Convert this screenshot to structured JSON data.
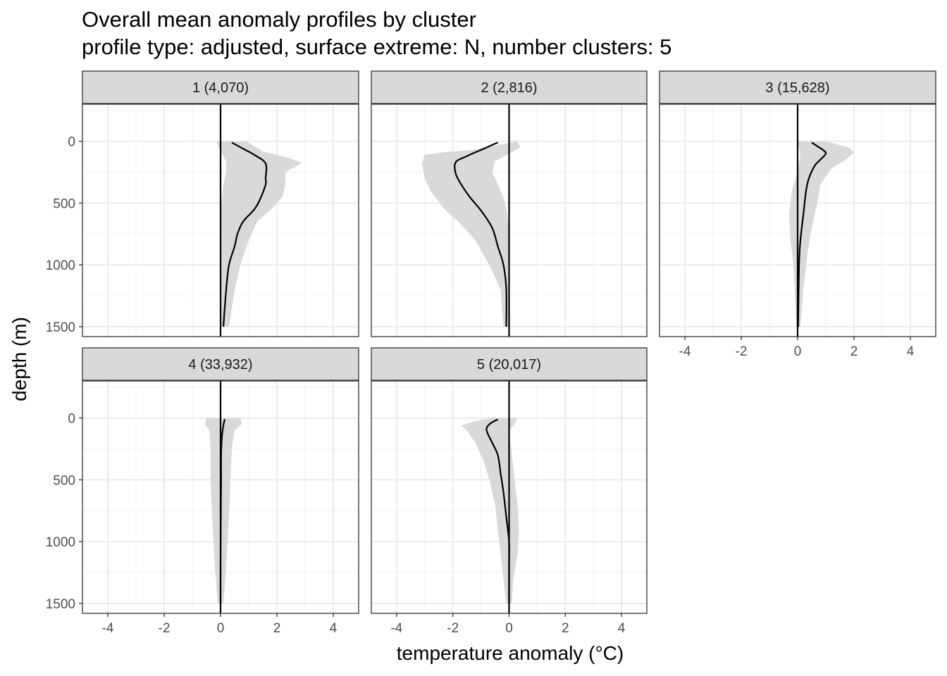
{
  "title_line1": "Overall mean anomaly profiles by cluster",
  "title_line2": "profile type: adjusted, surface extreme: N, number clusters: 5",
  "colors": {
    "ribbon": "#d9d9d9",
    "line": "#000000",
    "strip": "#d9d9d9",
    "grid_major": "#ebebeb",
    "grid_minor": "#f3f3f3",
    "border": "#333333",
    "tick_text": "#4d4d4d"
  },
  "chart_data": {
    "type": "line",
    "facet_layout": "3 columns x 2 rows",
    "xlabel": "temperature anomaly (°C)",
    "ylabel": "depth (m)",
    "xlim": [
      -4.9,
      4.9
    ],
    "ylim": [
      1580,
      -300
    ],
    "y_reversed": true,
    "xticks": [
      -4,
      -2,
      0,
      2,
      4
    ],
    "yticks": [
      0,
      500,
      1000,
      1500
    ],
    "reference_line_x": 0,
    "panels": [
      {
        "label": "1 (4,070)",
        "mean": [
          [
            0.4,
            10
          ],
          [
            0.8,
            60
          ],
          [
            1.2,
            110
          ],
          [
            1.6,
            180
          ],
          [
            1.6,
            300
          ],
          [
            1.6,
            350
          ],
          [
            1.4,
            470
          ],
          [
            1.2,
            550
          ],
          [
            0.8,
            650
          ],
          [
            0.6,
            750
          ],
          [
            0.5,
            850
          ],
          [
            0.3,
            1000
          ],
          [
            0.2,
            1200
          ],
          [
            0.1,
            1500
          ]
        ],
        "upper": [
          [
            0.9,
            0
          ],
          [
            1.5,
            80
          ],
          [
            2.5,
            140
          ],
          [
            2.9,
            175
          ],
          [
            2.3,
            250
          ],
          [
            2.3,
            350
          ],
          [
            2.2,
            450
          ],
          [
            1.8,
            550
          ],
          [
            1.3,
            650
          ],
          [
            1.0,
            800
          ],
          [
            0.7,
            1000
          ],
          [
            0.5,
            1200
          ],
          [
            0.3,
            1500
          ]
        ],
        "lower": [
          [
            -0.15,
            0
          ],
          [
            0,
            80
          ],
          [
            0.2,
            160
          ],
          [
            0.2,
            250
          ],
          [
            0.1,
            350
          ],
          [
            0.0,
            550
          ],
          [
            0.0,
            700
          ],
          [
            0.0,
            900
          ],
          [
            0.0,
            1200
          ],
          [
            0.0,
            1500
          ]
        ]
      },
      {
        "label": "2 (2,816)",
        "mean": [
          [
            -0.4,
            10
          ],
          [
            -0.9,
            60
          ],
          [
            -1.5,
            120
          ],
          [
            -1.9,
            170
          ],
          [
            -1.9,
            260
          ],
          [
            -1.7,
            350
          ],
          [
            -1.4,
            450
          ],
          [
            -1.0,
            560
          ],
          [
            -0.6,
            700
          ],
          [
            -0.4,
            850
          ],
          [
            -0.2,
            1000
          ],
          [
            -0.1,
            1200
          ],
          [
            -0.1,
            1500
          ]
        ],
        "upper": [
          [
            0.3,
            0
          ],
          [
            0.4,
            50
          ],
          [
            0.0,
            100
          ],
          [
            -0.5,
            160
          ],
          [
            -0.6,
            250
          ],
          [
            -0.4,
            350
          ],
          [
            -0.2,
            450
          ],
          [
            -0.1,
            550
          ],
          [
            0.0,
            700
          ],
          [
            0.0,
            1000
          ],
          [
            0.0,
            1500
          ]
        ],
        "lower": [
          [
            -1.3,
            70
          ],
          [
            -2.4,
            90
          ],
          [
            -3.0,
            110
          ],
          [
            -3.1,
            180
          ],
          [
            -3.0,
            300
          ],
          [
            -2.8,
            400
          ],
          [
            -2.3,
            550
          ],
          [
            -1.8,
            650
          ],
          [
            -1.2,
            800
          ],
          [
            -0.7,
            1000
          ],
          [
            -0.3,
            1200
          ],
          [
            -0.2,
            1500
          ]
        ]
      },
      {
        "label": "3 (15,628)",
        "mean": [
          [
            0.5,
            10
          ],
          [
            0.7,
            40
          ],
          [
            0.9,
            70
          ],
          [
            1.0,
            100
          ],
          [
            0.8,
            150
          ],
          [
            0.6,
            200
          ],
          [
            0.4,
            300
          ],
          [
            0.3,
            400
          ],
          [
            0.2,
            600
          ],
          [
            0.1,
            800
          ],
          [
            0.05,
            1000
          ],
          [
            0.02,
            1500
          ]
        ],
        "upper": [
          [
            1.0,
            0
          ],
          [
            1.8,
            50
          ],
          [
            2.0,
            90
          ],
          [
            1.7,
            150
          ],
          [
            1.2,
            220
          ],
          [
            0.8,
            350
          ],
          [
            0.7,
            500
          ],
          [
            0.5,
            700
          ],
          [
            0.35,
            900
          ],
          [
            0.2,
            1200
          ],
          [
            0.1,
            1500
          ]
        ],
        "lower": [
          [
            0.0,
            0
          ],
          [
            0.1,
            100
          ],
          [
            0.0,
            250
          ],
          [
            -0.2,
            400
          ],
          [
            -0.3,
            600
          ],
          [
            -0.25,
            800
          ],
          [
            -0.15,
            1000
          ],
          [
            -0.1,
            1200
          ],
          [
            -0.05,
            1500
          ]
        ]
      },
      {
        "label": "4 (33,932)",
        "mean": [
          [
            0.15,
            10
          ],
          [
            0.1,
            60
          ],
          [
            0.05,
            150
          ],
          [
            0.02,
            300
          ],
          [
            0.02,
            500
          ],
          [
            0.01,
            800
          ],
          [
            0.0,
            1200
          ],
          [
            0.0,
            1500
          ]
        ],
        "upper": [
          [
            0.7,
            0
          ],
          [
            0.75,
            50
          ],
          [
            0.5,
            100
          ],
          [
            0.4,
            250
          ],
          [
            0.35,
            500
          ],
          [
            0.3,
            800
          ],
          [
            0.2,
            1200
          ],
          [
            0.1,
            1500
          ]
        ],
        "lower": [
          [
            -0.5,
            0
          ],
          [
            -0.55,
            50
          ],
          [
            -0.4,
            100
          ],
          [
            -0.35,
            250
          ],
          [
            -0.35,
            500
          ],
          [
            -0.3,
            800
          ],
          [
            -0.2,
            1200
          ],
          [
            -0.1,
            1500
          ]
        ]
      },
      {
        "label": "5 (20,017)",
        "mean": [
          [
            -0.4,
            10
          ],
          [
            -0.7,
            50
          ],
          [
            -0.8,
            100
          ],
          [
            -0.6,
            200
          ],
          [
            -0.4,
            300
          ],
          [
            -0.3,
            450
          ],
          [
            -0.2,
            600
          ],
          [
            -0.1,
            800
          ],
          [
            0.0,
            1000
          ],
          [
            0.0,
            1200
          ],
          [
            0.0,
            1500
          ]
        ],
        "upper": [
          [
            0.3,
            0
          ],
          [
            0.2,
            50
          ],
          [
            0.0,
            100
          ],
          [
            0.05,
            200
          ],
          [
            0.1,
            300
          ],
          [
            0.2,
            500
          ],
          [
            0.3,
            700
          ],
          [
            0.35,
            900
          ],
          [
            0.3,
            1100
          ],
          [
            0.15,
            1300
          ],
          [
            0.1,
            1500
          ]
        ],
        "lower": [
          [
            -0.6,
            0
          ],
          [
            -1.3,
            30
          ],
          [
            -1.7,
            60
          ],
          [
            -1.5,
            100
          ],
          [
            -1.2,
            200
          ],
          [
            -0.9,
            350
          ],
          [
            -0.7,
            500
          ],
          [
            -0.5,
            700
          ],
          [
            -0.4,
            900
          ],
          [
            -0.3,
            1100
          ],
          [
            -0.2,
            1300
          ],
          [
            -0.1,
            1500
          ]
        ]
      }
    ]
  }
}
